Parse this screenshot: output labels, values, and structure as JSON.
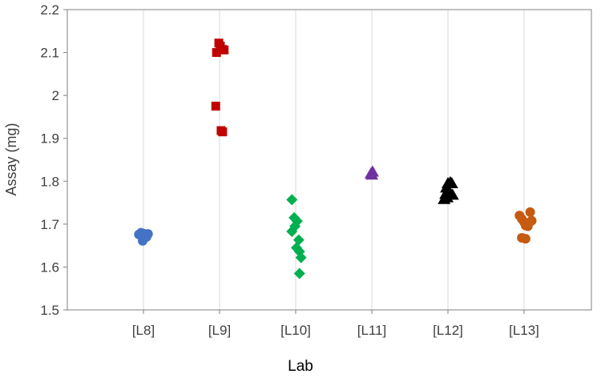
{
  "chart_data": {
    "type": "scatter",
    "title": "",
    "xlabel": "Lab",
    "ylabel": "Assay (mg)",
    "ylim": [
      1.5,
      2.2
    ],
    "yticks": [
      "1.5",
      "1.6",
      "1.7",
      "1.8",
      "1.9",
      "2",
      "2.1",
      "2.2"
    ],
    "categories": [
      "[L8]",
      "[L9]",
      "[L10]",
      "[L11]",
      "[L12]",
      "[L13]"
    ],
    "grid": "vertical",
    "legend": "none",
    "series": [
      {
        "category": "[L8]",
        "marker": "circle",
        "color": "#4472C4",
        "points": [
          {
            "x": -0.06,
            "y": 1.676
          },
          {
            "x": -0.03,
            "y": 1.68
          },
          {
            "x": 0.0,
            "y": 1.678
          },
          {
            "x": 0.03,
            "y": 1.675
          },
          {
            "x": 0.06,
            "y": 1.677
          },
          {
            "x": 0.0,
            "y": 1.671
          },
          {
            "x": 0.04,
            "y": 1.67
          },
          {
            "x": -0.01,
            "y": 1.661
          }
        ]
      },
      {
        "category": "[L9]",
        "marker": "square",
        "color": "#C00000",
        "points": [
          {
            "x": -0.04,
            "y": 2.1
          },
          {
            "x": -0.01,
            "y": 2.122
          },
          {
            "x": 0.01,
            "y": 2.115
          },
          {
            "x": 0.04,
            "y": 2.107
          },
          {
            "x": 0.06,
            "y": 2.106
          },
          {
            "x": -0.05,
            "y": 1.975
          },
          {
            "x": 0.02,
            "y": 1.918
          },
          {
            "x": 0.04,
            "y": 1.915
          }
        ]
      },
      {
        "category": "[L10]",
        "marker": "diamond",
        "color": "#00B050",
        "points": [
          {
            "x": -0.05,
            "y": 1.757
          },
          {
            "x": -0.02,
            "y": 1.715
          },
          {
            "x": 0.02,
            "y": 1.707
          },
          {
            "x": -0.01,
            "y": 1.695
          },
          {
            "x": -0.05,
            "y": 1.683
          },
          {
            "x": 0.04,
            "y": 1.663
          },
          {
            "x": 0.01,
            "y": 1.645
          },
          {
            "x": 0.05,
            "y": 1.636
          },
          {
            "x": 0.07,
            "y": 1.622
          },
          {
            "x": 0.05,
            "y": 1.585
          }
        ]
      },
      {
        "category": "[L11]",
        "marker": "triangle",
        "color": "#7030A0",
        "points": [
          {
            "x": -0.01,
            "y": 1.818
          },
          {
            "x": 0.01,
            "y": 1.822
          },
          {
            "x": 0.0,
            "y": 1.815
          }
        ]
      },
      {
        "category": "[L12]",
        "marker": "triangle",
        "color": "#000000",
        "points": [
          {
            "x": -0.05,
            "y": 1.758
          },
          {
            "x": -0.03,
            "y": 1.77
          },
          {
            "x": -0.02,
            "y": 1.785
          },
          {
            "x": 0.0,
            "y": 1.795
          },
          {
            "x": 0.03,
            "y": 1.797
          },
          {
            "x": 0.05,
            "y": 1.795
          },
          {
            "x": 0.02,
            "y": 1.775
          },
          {
            "x": 0.06,
            "y": 1.768
          },
          {
            "x": -0.01,
            "y": 1.762
          }
        ]
      },
      {
        "category": "[L13]",
        "marker": "circle",
        "color": "#C55A11",
        "points": [
          {
            "x": -0.06,
            "y": 1.72
          },
          {
            "x": -0.03,
            "y": 1.712
          },
          {
            "x": 0.0,
            "y": 1.705
          },
          {
            "x": 0.02,
            "y": 1.697
          },
          {
            "x": 0.05,
            "y": 1.695
          },
          {
            "x": 0.08,
            "y": 1.728
          },
          {
            "x": 0.1,
            "y": 1.708
          },
          {
            "x": -0.03,
            "y": 1.668
          },
          {
            "x": 0.02,
            "y": 1.666
          }
        ]
      }
    ]
  }
}
